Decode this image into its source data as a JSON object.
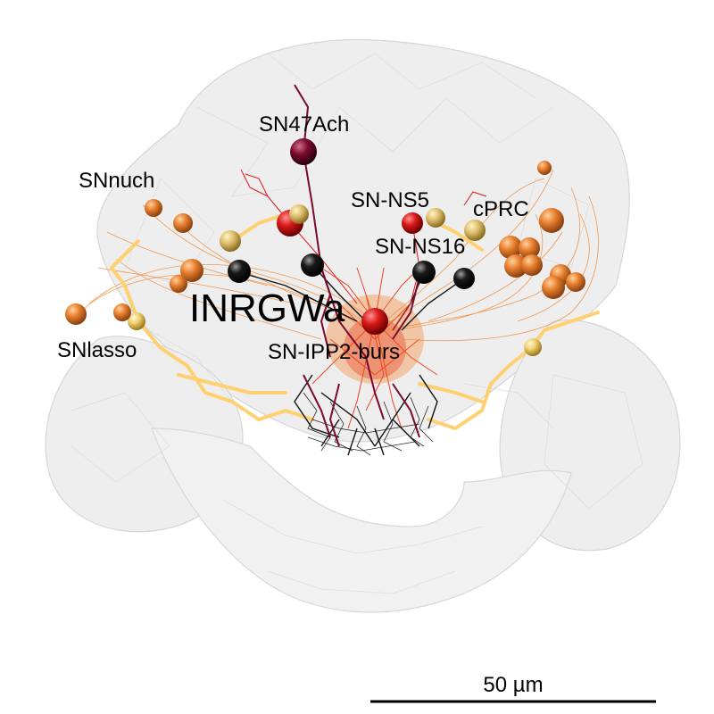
{
  "labels": {
    "sn47ach": "SN47Ach",
    "snnuch": "SNnuch",
    "sn_ns5": "SN-NS5",
    "cprc": "cPRC",
    "sn_ns16": "SN-NS16",
    "inrgwa": "INRGWa",
    "snlasso": "SNlasso",
    "sn_ipp2_burs": "SN-IPP2-burs"
  },
  "scale_bar": {
    "label": "50 µm"
  },
  "colors": {
    "sn47ach": "#7a0a2e",
    "snnuch": "#f08a38",
    "sn_ns5": "#e01818",
    "cprc": "#e8c870",
    "sn_ns16": "#111111",
    "snlasso": "#ffd070",
    "sn_ipp2_burs": "#f03010",
    "brain_fill": "#e6e6e6",
    "brain_edge": "#c8c8c8"
  }
}
